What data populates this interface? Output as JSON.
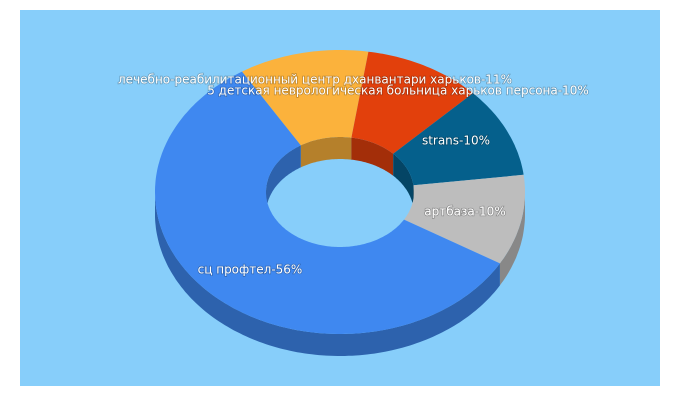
{
  "chart_data": {
    "type": "donut3d",
    "values": [
      11,
      10,
      10,
      10,
      56
    ],
    "value_labels": [
      "лечебно-реабилитационный центр дханвантари харьков-11%",
      "5 детская неврологическая больница харьков персона-10%",
      "strans-10%",
      "артбаза-10%",
      "сц профтел-56%"
    ],
    "colors": [
      "#fbb23c",
      "#e2400c",
      "#05608c",
      "#bdbdbd",
      "#3f88f0"
    ],
    "background": "#87cefa"
  }
}
